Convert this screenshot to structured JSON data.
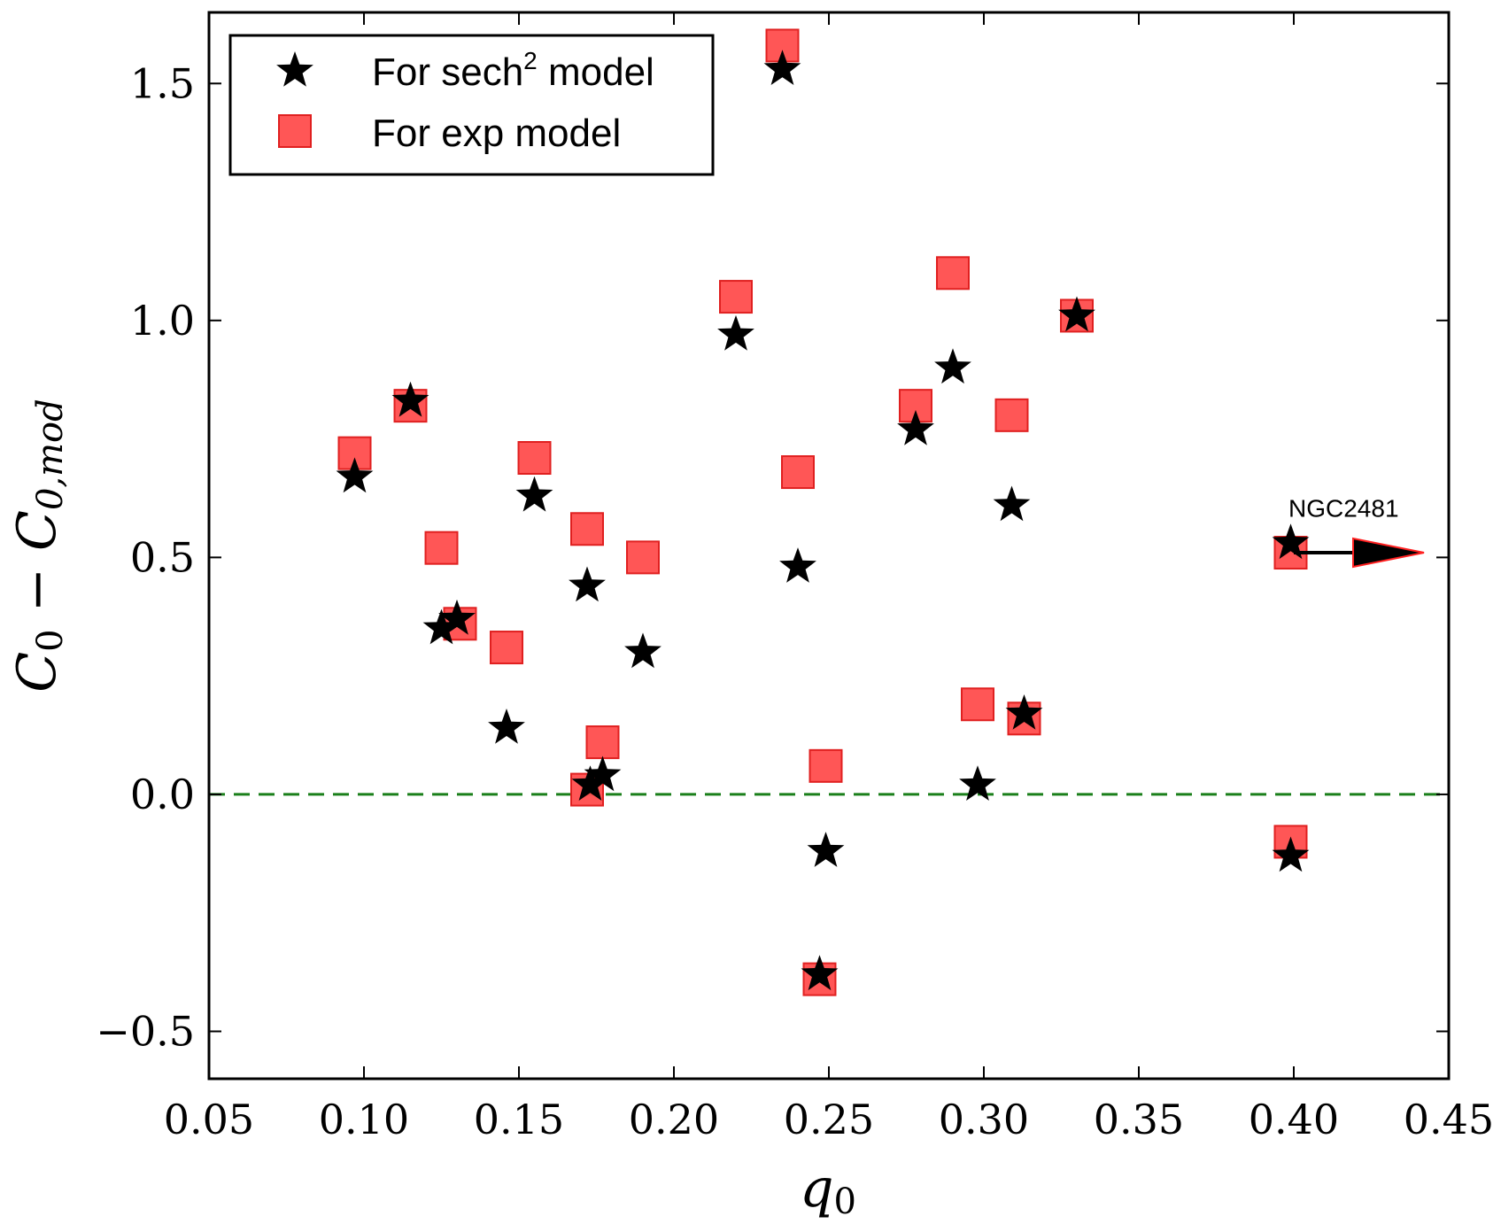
{
  "chart_data": {
    "type": "scatter",
    "title": "",
    "xlabel": "q_0",
    "ylabel": "C_0 − C_0,mod",
    "xlim": [
      0.05,
      0.45
    ],
    "ylim": [
      -0.6,
      1.65
    ],
    "xticks": [
      0.05,
      0.1,
      0.15,
      0.2,
      0.25,
      0.3,
      0.35,
      0.4,
      0.45
    ],
    "xtick_labels": [
      "0.05",
      "0.10",
      "0.15",
      "0.20",
      "0.25",
      "0.30",
      "0.35",
      "0.40",
      "0.45"
    ],
    "yticks": [
      -0.5,
      0.0,
      0.5,
      1.0,
      1.5
    ],
    "ytick_labels": [
      "−0.5",
      "0.0",
      "0.5",
      "1.0",
      "1.5"
    ],
    "grid": false,
    "legend_position": "top-left",
    "reference_line": {
      "y": 0.0,
      "style": "dashed",
      "color": "#1a7f1a"
    },
    "series": [
      {
        "name": "For sech² model",
        "legend_main": "For sech",
        "legend_sup": "2",
        "legend_tail": " model",
        "marker": "star",
        "color": "#000000",
        "x": [
          0.097,
          0.115,
          0.125,
          0.13,
          0.146,
          0.155,
          0.172,
          0.173,
          0.177,
          0.19,
          0.22,
          0.235,
          0.24,
          0.247,
          0.249,
          0.278,
          0.29,
          0.298,
          0.309,
          0.313,
          0.33,
          0.399,
          0.399
        ],
        "y": [
          0.67,
          0.83,
          0.35,
          0.37,
          0.14,
          0.63,
          0.44,
          0.02,
          0.04,
          0.3,
          0.97,
          1.53,
          0.48,
          -0.38,
          -0.12,
          0.77,
          0.9,
          0.02,
          0.61,
          0.17,
          1.01,
          0.53,
          -0.13
        ]
      },
      {
        "name": "For exp model",
        "marker": "square",
        "color": "#ff4d4d",
        "x": [
          0.097,
          0.115,
          0.125,
          0.131,
          0.146,
          0.155,
          0.172,
          0.172,
          0.177,
          0.19,
          0.22,
          0.235,
          0.24,
          0.247,
          0.249,
          0.278,
          0.29,
          0.298,
          0.309,
          0.313,
          0.33,
          0.399,
          0.399
        ],
        "y": [
          0.72,
          0.82,
          0.52,
          0.36,
          0.31,
          0.71,
          0.56,
          0.01,
          0.11,
          0.5,
          1.05,
          1.58,
          0.68,
          -0.39,
          0.06,
          0.82,
          1.1,
          0.19,
          0.8,
          0.16,
          1.01,
          0.51,
          -0.1
        ]
      }
    ],
    "annotations": [
      {
        "text": "NGC2481",
        "x": 0.4,
        "y": 0.53,
        "arrow_to_x": 0.442,
        "arrow_to_y": 0.51
      }
    ]
  }
}
